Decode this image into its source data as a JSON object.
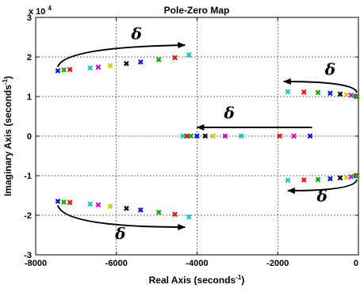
{
  "chart_data": {
    "type": "scatter",
    "title": "Pole-Zero Map",
    "xlabel": "Real Axis (seconds",
    "xlabel_sup": "-1",
    "xlabel_close": ")",
    "ylabel": "Imaginary Axis (seconds",
    "ylabel_sup": "-1",
    "ylabel_close": ")",
    "y_exponent_label": "x 10",
    "y_exponent_power": "4",
    "xlim": [
      -8000,
      0
    ],
    "ylim": [
      -3,
      3
    ],
    "x_ticks": [
      -8000,
      -6000,
      -4000,
      -2000,
      0
    ],
    "x_tick_labels": [
      "-8000",
      "-6000",
      "-4000",
      "-2000",
      "0"
    ],
    "y_ticks": [
      -3,
      -2,
      -1,
      0,
      1,
      2,
      3
    ],
    "y_tick_labels": [
      "-3",
      "-2",
      "-1",
      "0",
      "1",
      "2",
      "3"
    ],
    "grid": true,
    "legend": "none",
    "marker_symbol": "✖",
    "color_cycle": [
      "#0000ff",
      "#00aa00",
      "#ff0000",
      "#00c8c8",
      "#cc00cc",
      "#cccc00",
      "#000000"
    ],
    "series": [
      {
        "points": [
          {
            "x": -7450,
            "y": 1.65,
            "c": 0
          },
          {
            "x": -7300,
            "y": 1.67,
            "c": 1
          },
          {
            "x": -7150,
            "y": 1.68,
            "c": 2
          },
          {
            "x": -6650,
            "y": 1.72,
            "c": 3
          },
          {
            "x": -6450,
            "y": 1.74,
            "c": 4
          },
          {
            "x": -6150,
            "y": 1.78,
            "c": 5
          },
          {
            "x": -5750,
            "y": 1.83,
            "c": 6
          },
          {
            "x": -5400,
            "y": 1.87,
            "c": 0
          },
          {
            "x": -4950,
            "y": 1.93,
            "c": 1
          },
          {
            "x": -4550,
            "y": 1.98,
            "c": 2
          },
          {
            "x": -4200,
            "y": 2.05,
            "c": 3
          }
        ]
      },
      {
        "points": [
          {
            "x": -7450,
            "y": -1.65,
            "c": 0
          },
          {
            "x": -7300,
            "y": -1.67,
            "c": 1
          },
          {
            "x": -7150,
            "y": -1.68,
            "c": 2
          },
          {
            "x": -6650,
            "y": -1.72,
            "c": 3
          },
          {
            "x": -6450,
            "y": -1.74,
            "c": 4
          },
          {
            "x": -6150,
            "y": -1.78,
            "c": 5
          },
          {
            "x": -5750,
            "y": -1.83,
            "c": 6
          },
          {
            "x": -5400,
            "y": -1.87,
            "c": 0
          },
          {
            "x": -4950,
            "y": -1.93,
            "c": 1
          },
          {
            "x": -4550,
            "y": -1.98,
            "c": 2
          },
          {
            "x": -4200,
            "y": -2.05,
            "c": 3
          }
        ]
      },
      {
        "points": [
          {
            "x": -4350,
            "y": 0,
            "c": 3
          },
          {
            "x": -4250,
            "y": 0,
            "c": 2
          },
          {
            "x": -4150,
            "y": 0,
            "c": 1
          },
          {
            "x": -4000,
            "y": 0,
            "c": 0
          },
          {
            "x": -3800,
            "y": 0,
            "c": 6
          },
          {
            "x": -3600,
            "y": 0,
            "c": 5
          },
          {
            "x": -3300,
            "y": 0,
            "c": 4
          },
          {
            "x": -2900,
            "y": 0,
            "c": 3
          },
          {
            "x": -1950,
            "y": 0,
            "c": 2
          },
          {
            "x": -1600,
            "y": 0,
            "c": 4
          },
          {
            "x": -1200,
            "y": 0,
            "c": 0
          }
        ]
      },
      {
        "points": [
          {
            "x": -1750,
            "y": 1.12,
            "c": 3
          },
          {
            "x": -1350,
            "y": 1.11,
            "c": 2
          },
          {
            "x": -1000,
            "y": 1.1,
            "c": 1
          },
          {
            "x": -700,
            "y": 1.08,
            "c": 0
          },
          {
            "x": -450,
            "y": 1.06,
            "c": 6
          },
          {
            "x": -300,
            "y": 1.04,
            "c": 5
          },
          {
            "x": -180,
            "y": 1.03,
            "c": 4
          },
          {
            "x": -100,
            "y": 1.02,
            "c": 3
          },
          {
            "x": -60,
            "y": 1.0,
            "c": 2
          },
          {
            "x": -30,
            "y": 1.0,
            "c": 1
          }
        ]
      },
      {
        "points": [
          {
            "x": -1750,
            "y": -1.12,
            "c": 3
          },
          {
            "x": -1350,
            "y": -1.11,
            "c": 2
          },
          {
            "x": -1000,
            "y": -1.1,
            "c": 1
          },
          {
            "x": -700,
            "y": -1.08,
            "c": 0
          },
          {
            "x": -450,
            "y": -1.06,
            "c": 6
          },
          {
            "x": -300,
            "y": -1.04,
            "c": 5
          },
          {
            "x": -180,
            "y": -1.03,
            "c": 4
          },
          {
            "x": -100,
            "y": -1.02,
            "c": 3
          },
          {
            "x": -60,
            "y": -1.0,
            "c": 2
          },
          {
            "x": -30,
            "y": -1.0,
            "c": 1
          }
        ]
      }
    ],
    "annotations": [
      {
        "text": "δ",
        "label_x": -5500,
        "label_y": 2.45,
        "arrow": {
          "from": [
            -7450,
            1.75
          ],
          "ctrl": [
            -7300,
            2.25
          ],
          "to": [
            -4300,
            2.3
          ]
        }
      },
      {
        "text": "δ",
        "label_x": -5900,
        "label_y": -2.6,
        "arrow": {
          "from": [
            -7450,
            -1.75
          ],
          "ctrl": [
            -7300,
            -2.3
          ],
          "to": [
            -4300,
            -2.3
          ]
        }
      },
      {
        "text": "δ",
        "label_x": -3200,
        "label_y": 0.45,
        "arrow": {
          "from": [
            -1150,
            0.22
          ],
          "ctrl": [
            -2600,
            0.22
          ],
          "to": [
            -4000,
            0.22
          ]
        }
      },
      {
        "text": "δ",
        "label_x": -700,
        "label_y": 1.55,
        "arrow": {
          "from": [
            -40,
            1.1
          ],
          "ctrl": [
            -80,
            1.38
          ],
          "to": [
            -1850,
            1.38
          ]
        }
      },
      {
        "text": "δ",
        "label_x": -900,
        "label_y": -1.65,
        "arrow": {
          "from": [
            -40,
            -1.1
          ],
          "ctrl": [
            -80,
            -1.38
          ],
          "to": [
            -1750,
            -1.38
          ]
        }
      }
    ]
  }
}
